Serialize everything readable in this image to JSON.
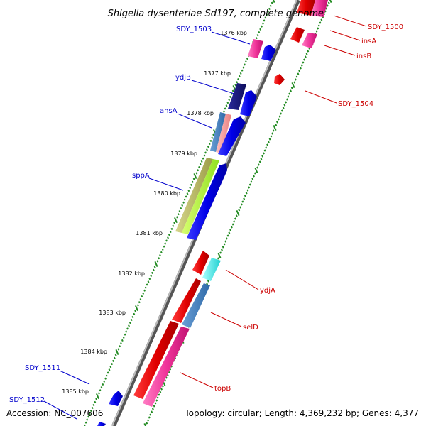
{
  "title": "Shigella dysenteriae Sd197, complete genome",
  "accession": "Accession: NC_007606",
  "topology": "Topology: circular; Length: 4,369,232 bp; Genes: 4,377",
  "colors": {
    "left_label": "#0000cc",
    "right_label": "#cc0000",
    "tick": "#228b22",
    "backbone": "#888888"
  },
  "kbp_ticks": [
    {
      "label": "1376 kbp"
    },
    {
      "label": "1377 kbp"
    },
    {
      "label": "1378 kbp"
    },
    {
      "label": "1379 kbp"
    },
    {
      "label": "1380 kbp"
    },
    {
      "label": "1381 kbp"
    },
    {
      "label": "1382 kbp"
    },
    {
      "label": "1383 kbp"
    },
    {
      "label": "1384 kbp"
    },
    {
      "label": "1385 kbp"
    }
  ],
  "left_genes": [
    {
      "name": "SDY_1503"
    },
    {
      "name": "ydjB"
    },
    {
      "name": "ansA"
    },
    {
      "name": "sppA"
    },
    {
      "name": "SDY_1511"
    },
    {
      "name": "SDY_1512"
    }
  ],
  "right_genes": [
    {
      "name": "SDY_1500"
    },
    {
      "name": "insA"
    },
    {
      "name": "insB"
    },
    {
      "name": "SDY_1504"
    },
    {
      "name": "ydjA"
    },
    {
      "name": "selD"
    },
    {
      "name": "topB"
    }
  ]
}
